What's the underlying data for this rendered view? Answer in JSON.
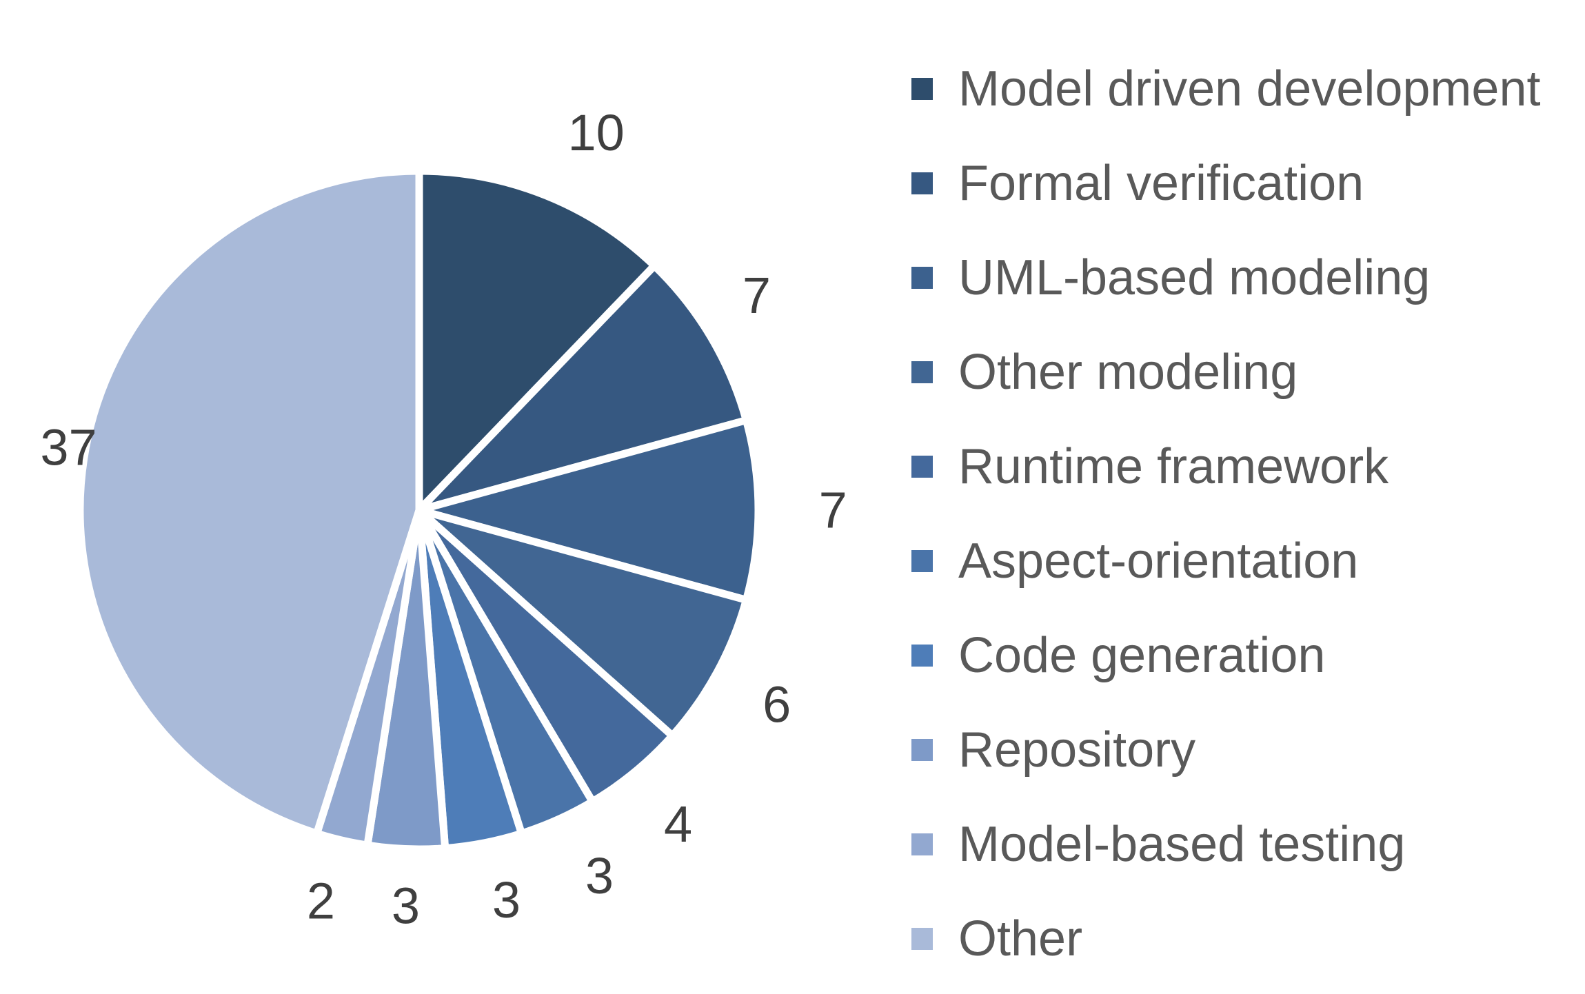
{
  "chart_data": {
    "type": "pie",
    "title": "",
    "categories": [
      "Model driven development",
      "Formal verification",
      "UML-based modeling",
      "Other modeling",
      "Runtime framework",
      "Aspect-orientation",
      "Code generation",
      "Repository",
      "Model-based testing",
      "Other"
    ],
    "values": [
      10,
      7,
      7,
      6,
      4,
      3,
      3,
      3,
      2,
      37
    ],
    "total": 82,
    "colors": [
      "#2E4D6C",
      "#365881",
      "#3C618E",
      "#416693",
      "#44699C",
      "#4A74A9",
      "#4E7DB8",
      "#7E9AC8",
      "#92A8D0",
      "#A9BAD9"
    ],
    "start_angle_deg": 0,
    "direction": "clockwise",
    "separator_color": "#FFFFFF",
    "data_label_color": "#3F3F3F",
    "legend_position": "right",
    "legend_text_color": "#595959",
    "background_color": "#FFFFFF",
    "grid": "off"
  }
}
